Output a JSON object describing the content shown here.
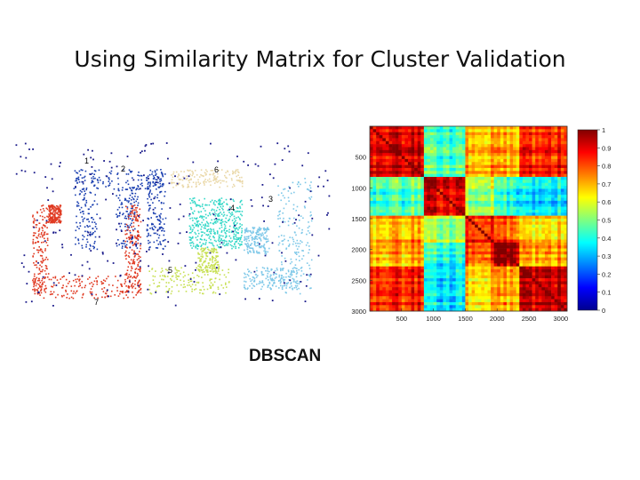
{
  "slide": {
    "title": "Using Similarity Matrix for Cluster Validation",
    "caption": "DBSCAN"
  },
  "scatter": {
    "cluster_labels": [
      "1",
      "2",
      "3",
      "4",
      "5",
      "6",
      "7"
    ],
    "colors": {
      "1": "#1a3fb0",
      "2": "#1a3fb0",
      "3": "#7ec8e8",
      "4": "#35d8c8",
      "5": "#c8e055",
      "6": "#ead8a8",
      "7": "#e03a22",
      "noise": "#1a1a8a"
    }
  },
  "chart_data": {
    "type": "heatmap",
    "x_ticks": [
      "500",
      "1000",
      "1500",
      "2000",
      "2500",
      "3000"
    ],
    "y_ticks": [
      "500",
      "1000",
      "1500",
      "2000",
      "2500",
      "3000"
    ],
    "xlim": [
      0,
      3100
    ],
    "ylim": [
      0,
      3000
    ],
    "blocks": [
      0,
      820,
      1480,
      1950,
      2350,
      3100
    ],
    "block_labels": [
      "",
      "",
      "",
      "",
      ""
    ],
    "colorbar": {
      "ticks": [
        "0",
        "0.1",
        "0.2",
        "0.3",
        "0.4",
        "0.5",
        "0.6",
        "0.7",
        "0.8",
        "0.9",
        "1"
      ],
      "range": [
        0,
        1
      ]
    }
  }
}
